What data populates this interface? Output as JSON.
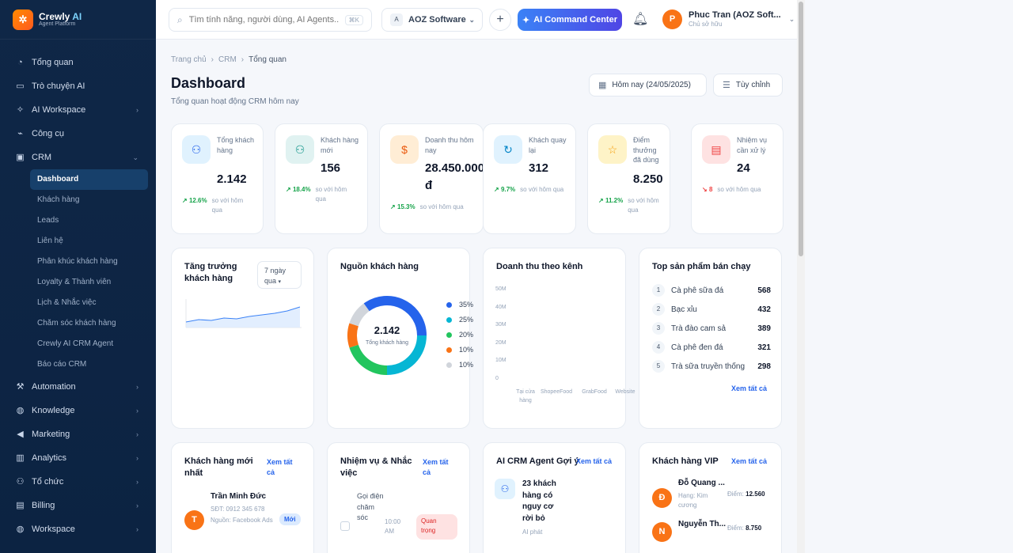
{
  "brand": {
    "name": "Crewly",
    "name_ai": "AI",
    "sub": "Agent Platform"
  },
  "sidebar": {
    "items": [
      {
        "label": "Tổng quan",
        "icon": "gauge-icon"
      },
      {
        "label": "Trò chuyện AI",
        "icon": "chat-icon"
      },
      {
        "label": "AI Workspace",
        "icon": "sparkle-icon"
      },
      {
        "label": "Công cụ",
        "icon": "plug-icon"
      },
      {
        "label": "CRM",
        "icon": "crm-icon"
      }
    ],
    "crm_sub": [
      "Dashboard",
      "Khách hàng",
      "Leads",
      "Liên hệ",
      "Phân khúc khách hàng",
      "Loyalty & Thành viên",
      "Lịch & Nhắc việc",
      "Chăm sóc khách hàng",
      "Crewly AI CRM Agent",
      "Báo cáo CRM"
    ],
    "bottom": [
      {
        "label": "Automation",
        "icon": "wrench-icon"
      },
      {
        "label": "Knowledge",
        "icon": "globe-icon"
      },
      {
        "label": "Marketing",
        "icon": "megaphone-icon"
      },
      {
        "label": "Analytics",
        "icon": "bar-chart-icon"
      },
      {
        "label": "Tổ chức",
        "icon": "team-icon"
      },
      {
        "label": "Billing",
        "icon": "card-icon"
      },
      {
        "label": "Workspace",
        "icon": "globe-icon"
      }
    ]
  },
  "topbar": {
    "search_placeholder": "Tìm tính năng, người dùng, AI Agents...",
    "search_kbd": "⌘K",
    "org_badge": "A",
    "org_name": "AOZ Software",
    "ai_button": "AI Command Center",
    "user_initial": "P",
    "user_name": "Phuc Tran (AOZ Soft...",
    "user_role": "Chủ sở hữu"
  },
  "breadcrumb": [
    "Trang chủ",
    "CRM",
    "Tổng quan"
  ],
  "page": {
    "title": "Dashboard",
    "subtitle": "Tổng quan hoạt động CRM hôm nay",
    "date_button": "Hôm nay (24/05/2025)",
    "customize_button": "Tùy chỉnh"
  },
  "stats": [
    {
      "label": "Tổng khách hàng",
      "value": "2.142",
      "pct": "12.6%",
      "compare": "so với hôm qua",
      "trend": "up",
      "icon": "users-icon",
      "color": "#2563eb",
      "bg": "#e0f2fe"
    },
    {
      "label": "Khách hàng mới",
      "value": "156",
      "pct": "18.4%",
      "compare": "so với hôm qua",
      "trend": "up",
      "icon": "user-add-icon",
      "color": "#0d9488",
      "bg": "#e0f2f1"
    },
    {
      "label": "Doanh thu hôm nay",
      "value": "28.450.000 đ",
      "pct": "15.3%",
      "compare": "so với hôm qua",
      "trend": "up",
      "icon": "dollar-icon",
      "color": "#ea580c",
      "bg": "#ffedd5"
    },
    {
      "label": "Khách quay lại",
      "value": "312",
      "pct": "9.7%",
      "compare": "so với hôm qua",
      "trend": "up",
      "icon": "refresh-icon",
      "color": "#0284c7",
      "bg": "#e0f2fe"
    },
    {
      "label": "Điểm thưởng đã dùng",
      "value": "8.250",
      "pct": "11.2%",
      "compare": "so với hôm qua",
      "trend": "up",
      "icon": "star-icon",
      "color": "#f59e0b",
      "bg": "#fef3c7"
    },
    {
      "label": "Nhiệm vụ cần xử lý",
      "value": "24",
      "pct": "8",
      "compare": "so với hôm qua",
      "trend": "down",
      "icon": "clipboard-icon",
      "color": "#ef4444",
      "bg": "#fee2e2"
    }
  ],
  "growth": {
    "title": "Tăng trưởng khách hàng",
    "period": "7 ngày qua"
  },
  "source": {
    "title": "Nguồn khách hàng",
    "center_value": "2.142",
    "center_label": "Tổng khách hàng"
  },
  "revenue": {
    "title": "Doanh thu theo kênh"
  },
  "top_products": {
    "title": "Top sản phẩm bán chạy",
    "items": [
      {
        "rank": "1",
        "name": "Cà phê sữa đá",
        "qty": "568"
      },
      {
        "rank": "2",
        "name": "Bạc xỉu",
        "qty": "432"
      },
      {
        "rank": "3",
        "name": "Trà đào cam sả",
        "qty": "389"
      },
      {
        "rank": "4",
        "name": "Cà phê đen đá",
        "qty": "321"
      },
      {
        "rank": "5",
        "name": "Trà sữa truyền thống",
        "qty": "298"
      }
    ],
    "view_all": "Xem tất cả"
  },
  "new_customers": {
    "title": "Khách hàng mới nhất",
    "view_all": "Xem tất cả",
    "item": {
      "initial": "T",
      "name": "Trần Minh Đức",
      "phone": "SĐT: 0912 345 678",
      "source": "Nguồn: Facebook Ads",
      "badge": "Mới"
    }
  },
  "tasks": {
    "title": "Nhiệm vụ & Nhắc việc",
    "view_all": "Xem tất cả",
    "item": {
      "text": "Gọi điện chăm sóc",
      "time": "10:00 AM",
      "badge": "Quan trọng"
    }
  },
  "ai_agent": {
    "title": "AI CRM Agent Gợi ý",
    "view_all": "Xem tất cả",
    "item": {
      "text": "23 khách hàng có nguy cơ rời bỏ",
      "sub": "AI phát"
    }
  },
  "vip": {
    "title": "Khách hàng VIP",
    "view_all": "Xem tất cả",
    "items": [
      {
        "initial": "Đ",
        "name": "Đỗ Quang ...",
        "tier": "Hạng: Kim cương",
        "points_label": "Điểm:",
        "points": "12.560"
      },
      {
        "initial": "N",
        "name": "Nguyễn Th...",
        "tier": "",
        "points_label": "Điểm:",
        "points": "8.750"
      }
    ]
  },
  "chart_data": [
    {
      "type": "pie",
      "labels": [
        "35%",
        "25%",
        "20%",
        "10%",
        "10%"
      ],
      "values": [
        35,
        25,
        20,
        10,
        10
      ],
      "colors": [
        "#2563eb",
        "#06b6d4",
        "#22c55e",
        "#f97316",
        "#d1d5db"
      ]
    },
    {
      "type": "bar",
      "categories": [
        "Tại cửa hàng",
        "ShopeeFood",
        "GrabFood",
        "Website"
      ],
      "y_ticks": [
        "50M",
        "40M",
        "30M",
        "20M",
        "10M",
        "0"
      ],
      "ylim": [
        0,
        50
      ]
    },
    {
      "type": "area",
      "color": "#3b82f6"
    }
  ]
}
